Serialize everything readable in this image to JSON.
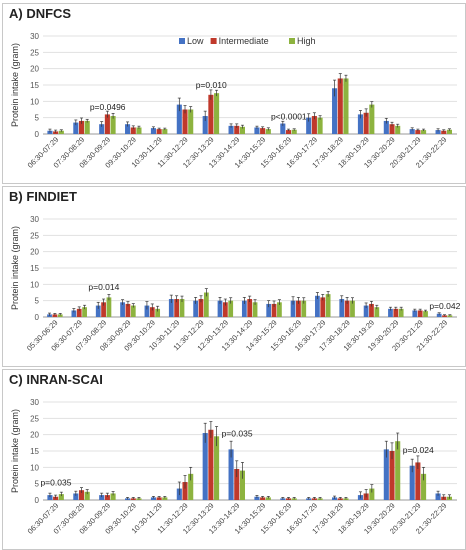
{
  "chart_data": [
    {
      "type": "bar",
      "title": "A) DNFCS",
      "ylabel": "Protein intake (gram)",
      "ylim": [
        0,
        30
      ],
      "yticks": [
        0,
        5,
        10,
        15,
        20,
        25,
        30
      ],
      "grid": true,
      "legend_position": "top-right",
      "categories": [
        "06:30-07:29",
        "07:30-08:29",
        "08:30-09:29",
        "09:30-10:29",
        "10:30-11:29",
        "11:30-12:29",
        "12:30-13:29",
        "13:30-14:29",
        "14:30-15:29",
        "15:30-16:29",
        "16:30-17:29",
        "17:30-18:29",
        "18:30-19:29",
        "19:30-20:29",
        "20:30-21:29",
        "21:30-22:29"
      ],
      "series": [
        {
          "name": "Low",
          "color": "#4472c4",
          "values": [
            1.0,
            3.5,
            3.0,
            3.0,
            1.8,
            9.0,
            5.5,
            2.5,
            2.0,
            3.2,
            5.0,
            14.0,
            6.0,
            4.0,
            1.5,
            1.2
          ],
          "errors": [
            0.5,
            0.8,
            0.8,
            0.7,
            0.4,
            2.0,
            1.5,
            0.6,
            0.4,
            0.7,
            1.2,
            2.5,
            1.2,
            0.8,
            0.4,
            0.4
          ]
        },
        {
          "name": "Intermediate",
          "color": "#c0392b",
          "values": [
            0.8,
            4.0,
            6.0,
            2.0,
            1.5,
            7.5,
            12.0,
            2.5,
            1.8,
            1.2,
            5.5,
            17.0,
            6.5,
            3.0,
            1.2,
            1.0
          ],
          "errors": [
            0.4,
            0.9,
            1.0,
            0.5,
            0.3,
            1.2,
            1.5,
            0.6,
            0.4,
            0.3,
            1.0,
            1.5,
            1.2,
            0.6,
            0.3,
            0.3
          ]
        },
        {
          "name": "High",
          "color": "#8db33f",
          "values": [
            1.0,
            4.0,
            5.5,
            2.0,
            1.5,
            7.5,
            12.5,
            2.2,
            1.5,
            1.3,
            5.0,
            17.0,
            9.0,
            2.5,
            1.2,
            1.3
          ],
          "errors": [
            0.3,
            0.5,
            0.8,
            0.4,
            0.3,
            0.9,
            0.9,
            0.5,
            0.4,
            0.3,
            0.6,
            1.0,
            0.9,
            0.5,
            0.3,
            0.3
          ]
        }
      ],
      "annotations": [
        {
          "text": "p=0.0496",
          "category_index": 2,
          "y": 6.8
        },
        {
          "text": "p=0.010",
          "category_index": 6,
          "y": 13.5
        },
        {
          "text": "p<0.0001",
          "category_index": 9,
          "y": 3.9
        }
      ]
    },
    {
      "type": "bar",
      "title": "B) FINDIET",
      "ylabel": "Protein intake (gram)",
      "ylim": [
        0,
        30
      ],
      "yticks": [
        0,
        5,
        10,
        15,
        20,
        25,
        30
      ],
      "grid": true,
      "categories": [
        "05:30-06:29",
        "06:30-07:29",
        "07:30-08:29",
        "08:30-09:29",
        "09:30-10:29",
        "10:30-11:29",
        "11:30-12:29",
        "12:30-13:29",
        "13:30-14:29",
        "14:30-15:29",
        "15:30-16:29",
        "16:30-17:29",
        "17:30-18:29",
        "18:30-19:29",
        "19:30-20:29",
        "20:30-21:29",
        "21:30-22:29"
      ],
      "series": [
        {
          "name": "Low",
          "color": "#4472c4",
          "values": [
            0.8,
            2.0,
            3.5,
            4.5,
            3.5,
            5.5,
            5.0,
            5.0,
            5.0,
            4.0,
            5.0,
            6.5,
            5.5,
            3.5,
            2.5,
            2.0,
            1.0
          ],
          "errors": [
            0.4,
            0.6,
            1.0,
            0.8,
            1.2,
            1.2,
            1.0,
            1.0,
            1.0,
            1.0,
            1.2,
            1.0,
            1.0,
            0.8,
            0.5,
            0.4,
            0.3
          ]
        },
        {
          "name": "Intermediate",
          "color": "#c0392b",
          "values": [
            0.8,
            2.5,
            4.5,
            4.0,
            3.0,
            5.5,
            5.5,
            4.5,
            5.5,
            4.0,
            5.0,
            6.0,
            5.0,
            4.0,
            2.5,
            2.0,
            0.5
          ],
          "errors": [
            0.3,
            0.6,
            1.0,
            0.7,
            1.0,
            1.0,
            1.0,
            1.0,
            0.9,
            0.9,
            1.0,
            0.9,
            1.0,
            0.8,
            0.5,
            0.4,
            0.2
          ]
        },
        {
          "name": "High",
          "color": "#8db33f",
          "values": [
            0.8,
            3.0,
            6.0,
            3.5,
            2.5,
            5.5,
            7.5,
            5.0,
            4.5,
            4.5,
            5.0,
            7.0,
            5.0,
            3.0,
            2.5,
            1.8,
            0.5
          ],
          "errors": [
            0.3,
            0.6,
            0.9,
            0.6,
            0.8,
            0.9,
            1.2,
            0.9,
            0.8,
            0.8,
            0.9,
            0.8,
            0.9,
            0.6,
            0.5,
            0.3,
            0.2
          ]
        }
      ],
      "annotations": [
        {
          "text": "p=0.014",
          "category_index": 2,
          "y": 7.6
        },
        {
          "text": "p=0.042",
          "category_index": 16,
          "y": 1.9
        }
      ]
    },
    {
      "type": "bar",
      "title": "C) INRAN-SCAI",
      "ylabel": "Protein intake (gram)",
      "ylim": [
        0,
        30
      ],
      "yticks": [
        0,
        5,
        10,
        15,
        20,
        25,
        30
      ],
      "grid": true,
      "categories": [
        "06:30-07:29",
        "07:30-08:29",
        "08:30-09:29",
        "09:30-10:29",
        "10:30-11:29",
        "11:30-12:29",
        "12:30-13:29",
        "13:30-14:29",
        "14:30-15:29",
        "15:30-16:29",
        "16:30-17:29",
        "17:30-18:29",
        "18:30-19:29",
        "19:30-20:29",
        "20:30-21:29",
        "21:30-22:29"
      ],
      "series": [
        {
          "name": "Low",
          "color": "#4472c4",
          "values": [
            1.5,
            2.0,
            1.5,
            0.5,
            0.8,
            3.5,
            20.5,
            15.5,
            1.0,
            0.5,
            0.5,
            0.8,
            1.5,
            15.5,
            10.5,
            2.0
          ],
          "errors": [
            0.6,
            0.7,
            0.6,
            0.3,
            0.3,
            2.0,
            3.0,
            2.5,
            0.4,
            0.3,
            0.3,
            0.4,
            1.0,
            2.5,
            2.0,
            0.7
          ]
        },
        {
          "name": "Intermediate",
          "color": "#c0392b",
          "values": [
            1.0,
            3.0,
            1.5,
            0.5,
            0.8,
            5.5,
            21.5,
            9.5,
            0.8,
            0.5,
            0.5,
            0.5,
            2.0,
            15.0,
            11.5,
            1.0
          ],
          "errors": [
            0.5,
            0.8,
            0.6,
            0.3,
            0.3,
            2.0,
            2.5,
            2.5,
            0.3,
            0.3,
            0.3,
            0.3,
            1.2,
            2.5,
            2.0,
            0.6
          ]
        },
        {
          "name": "High",
          "color": "#8db33f",
          "values": [
            1.8,
            2.5,
            2.0,
            0.5,
            0.8,
            8.0,
            19.5,
            9.0,
            0.8,
            0.5,
            0.5,
            0.5,
            3.5,
            18.0,
            8.0,
            1.0
          ],
          "errors": [
            0.6,
            0.7,
            0.6,
            0.3,
            0.3,
            2.0,
            3.0,
            2.5,
            0.3,
            0.3,
            0.3,
            0.3,
            1.2,
            2.5,
            2.0,
            0.6
          ]
        }
      ],
      "annotations": [
        {
          "text": "p=0.035",
          "category_index": 0,
          "y": 3.9
        },
        {
          "text": "p=0.035",
          "category_index": 7,
          "y": 18.8
        },
        {
          "text": "p=0.024",
          "category_index": 14,
          "y": 13.8
        }
      ]
    }
  ]
}
